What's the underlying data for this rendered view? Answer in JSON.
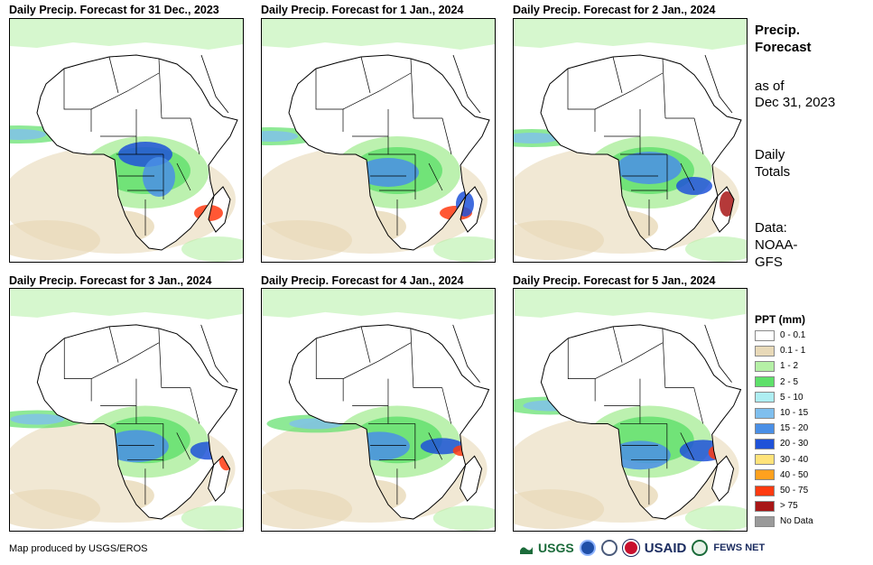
{
  "panels": [
    {
      "title": "Daily Precip. Forecast for 31 Dec., 2023"
    },
    {
      "title": "Daily Precip. Forecast for 1 Jan., 2024"
    },
    {
      "title": "Daily Precip. Forecast for 2 Jan., 2024"
    },
    {
      "title": "Daily Precip. Forecast for 3 Jan., 2024"
    },
    {
      "title": "Daily Precip. Forecast for 4 Jan., 2024"
    },
    {
      "title": "Daily Precip. Forecast for 5 Jan., 2024"
    }
  ],
  "side": {
    "title_line1": "Precip.",
    "title_line2": "Forecast",
    "asof_line1": "as of",
    "asof_line2": "Dec 31, 2023",
    "totals_line1": "Daily",
    "totals_line2": "Totals",
    "source_line1": "Data:",
    "source_line2": "NOAA-",
    "source_line3": "GFS"
  },
  "legend": {
    "title": "PPT (mm)",
    "items": [
      {
        "label": "0 - 0.1",
        "color": "#ffffff"
      },
      {
        "label": "0.1 - 1",
        "color": "#e8d9b8"
      },
      {
        "label": "1 - 2",
        "color": "#b5f0a6"
      },
      {
        "label": "2 - 5",
        "color": "#5ee06a"
      },
      {
        "label": "5 - 10",
        "color": "#aeeef2"
      },
      {
        "label": "10 - 15",
        "color": "#7fbfee"
      },
      {
        "label": "15 - 20",
        "color": "#4a8fe6"
      },
      {
        "label": "20 - 30",
        "color": "#1f52d8"
      },
      {
        "label": "30 - 40",
        "color": "#ffe37a"
      },
      {
        "label": "40 - 50",
        "color": "#ffa11e"
      },
      {
        "label": "50 - 75",
        "color": "#ff3a10"
      },
      {
        "label": "> 75",
        "color": "#a81616"
      },
      {
        "label": "No Data",
        "color": "#9a9a9a"
      }
    ]
  },
  "credit": "Map produced by USGS/EROS",
  "logos": {
    "usgs": "USGS",
    "usaid": "USAID",
    "fews": "FEWS NET"
  }
}
